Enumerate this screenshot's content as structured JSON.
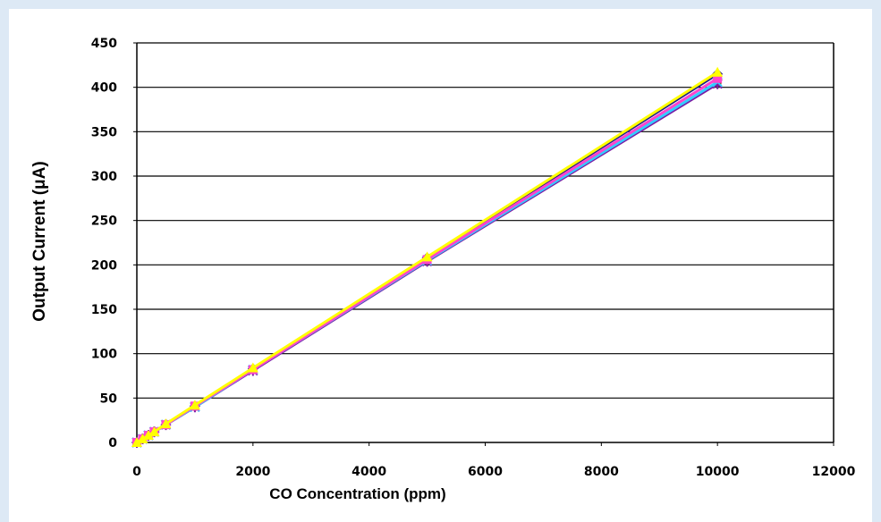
{
  "chart_data": {
    "type": "line",
    "title": "",
    "xlabel": "CO Concentration (ppm)",
    "ylabel": "Output Current (μA)",
    "xlim": [
      0,
      12000
    ],
    "ylim": [
      0,
      450
    ],
    "x_ticks": [
      0,
      2000,
      4000,
      6000,
      8000,
      10000,
      12000
    ],
    "y_ticks": [
      0,
      50,
      100,
      150,
      200,
      250,
      300,
      350,
      400,
      450
    ],
    "grid": "horizontal",
    "x": [
      0,
      100,
      200,
      300,
      500,
      1000,
      2000,
      5000,
      10000
    ],
    "series": [
      {
        "values": [
          0,
          4,
          8,
          12,
          20,
          41,
          83,
          208,
          415
        ],
        "color": "#1a1a8c",
        "marker": "diamond"
      },
      {
        "values": [
          0,
          4,
          8,
          12,
          20,
          41,
          82,
          206,
          410
        ],
        "color": "#ff44cc",
        "marker": "square"
      },
      {
        "values": [
          0,
          4,
          8,
          12,
          21,
          42,
          84,
          209,
          417
        ],
        "color": "#ffff00",
        "marker": "triangle"
      },
      {
        "values": [
          0,
          4,
          8,
          12,
          20,
          40,
          82,
          205,
          406
        ],
        "color": "#33ccff",
        "marker": "x"
      },
      {
        "values": [
          0,
          4,
          8,
          12,
          20,
          40,
          81,
          204,
          404
        ],
        "color": "#7a1aa3",
        "marker": "star"
      },
      {
        "values": [
          0,
          4,
          8,
          12,
          20,
          40,
          82,
          205,
          405
        ],
        "color": "#993300",
        "marker": "circle"
      }
    ]
  }
}
